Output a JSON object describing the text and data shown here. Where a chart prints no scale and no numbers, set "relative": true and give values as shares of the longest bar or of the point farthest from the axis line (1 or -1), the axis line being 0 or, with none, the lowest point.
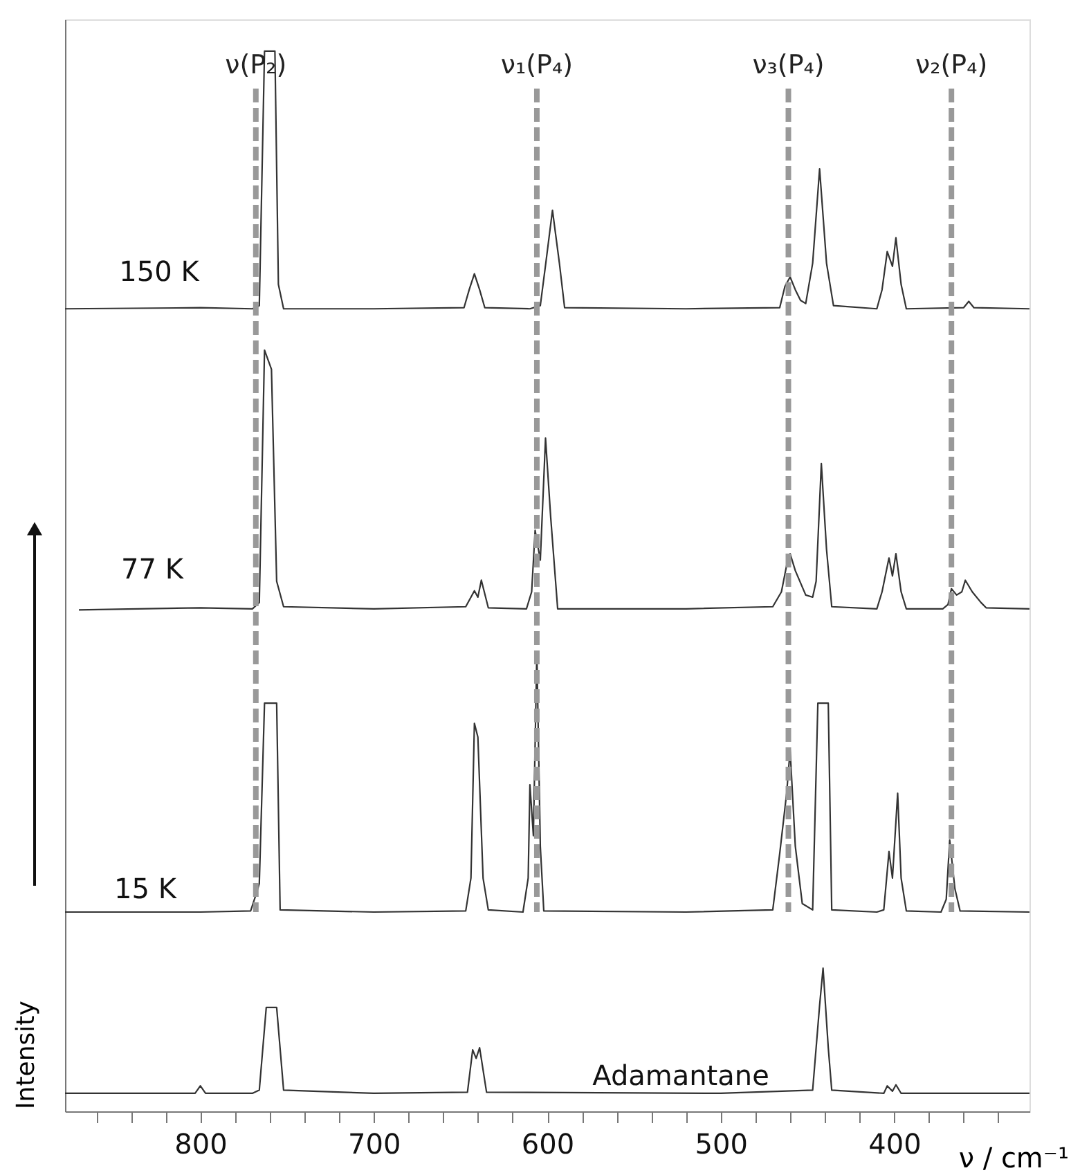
{
  "chart_data": {
    "type": "line",
    "relative": true,
    "xlabel": "ν / cm⁻¹",
    "ylabel": "Intensity",
    "xlim": [
      878,
      322
    ],
    "xticks": [
      {
        "value": 860,
        "label": null
      },
      {
        "value": 840,
        "label": null
      },
      {
        "value": 820,
        "label": null
      },
      800,
      {
        "value": 780,
        "label": null
      },
      {
        "value": 760,
        "label": null
      },
      {
        "value": 740,
        "label": null
      },
      {
        "value": 720,
        "label": null
      },
      700,
      {
        "value": 680,
        "label": null
      },
      {
        "value": 660,
        "label": null
      },
      {
        "value": 640,
        "label": null
      },
      {
        "value": 620,
        "label": null
      },
      600,
      {
        "value": 580,
        "label": null
      },
      {
        "value": 560,
        "label": null
      },
      {
        "value": 540,
        "label": null
      },
      {
        "value": 520,
        "label": null
      },
      500,
      {
        "value": 480,
        "label": null
      },
      {
        "value": 460,
        "label": null
      },
      {
        "value": 440,
        "label": null
      },
      {
        "value": 420,
        "label": null
      },
      400,
      {
        "value": 380,
        "label": null
      },
      {
        "value": 360,
        "label": null
      },
      {
        "value": 340,
        "label": null
      }
    ],
    "grid": false,
    "legend": false,
    "series": [
      {
        "name": "150 K",
        "color": "#333333",
        "x": [
          878,
          800,
          770,
          766,
          763,
          757,
          755,
          752,
          700,
          648,
          645,
          642,
          639,
          636,
          610,
          604,
          601,
          597,
          593,
          590,
          520,
          466,
          463,
          460,
          457,
          454,
          451,
          447,
          443,
          439,
          435,
          410,
          407,
          404,
          401,
          399,
          396,
          393,
          360,
          357,
          354,
          322
        ],
        "values": [
          0.757,
          0.758,
          0.757,
          0.76,
          1.0,
          1.0,
          0.78,
          0.757,
          0.757,
          0.758,
          0.775,
          0.79,
          0.775,
          0.758,
          0.757,
          0.76,
          0.798,
          0.85,
          0.8,
          0.758,
          0.757,
          0.758,
          0.778,
          0.787,
          0.775,
          0.765,
          0.762,
          0.8,
          0.889,
          0.8,
          0.76,
          0.757,
          0.775,
          0.811,
          0.797,
          0.824,
          0.78,
          0.757,
          0.758,
          0.764,
          0.758,
          0.757
        ]
      },
      {
        "name": "77 K",
        "color": "#333333",
        "x": [
          870,
          800,
          770,
          766,
          763,
          759,
          756,
          752,
          700,
          647,
          644,
          642,
          640,
          638,
          634,
          612,
          609,
          607,
          604,
          601,
          598,
          594,
          520,
          470,
          465,
          462,
          460,
          457,
          451,
          447,
          445,
          442,
          439,
          436,
          410,
          407,
          403,
          401,
          399,
          396,
          393,
          372,
          369,
          367,
          364,
          361,
          359,
          355,
          350,
          347,
          322
        ],
        "values": [
          0.473,
          0.475,
          0.474,
          0.48,
          0.718,
          0.7,
          0.5,
          0.476,
          0.474,
          0.476,
          0.485,
          0.491,
          0.485,
          0.501,
          0.475,
          0.474,
          0.49,
          0.548,
          0.52,
          0.635,
          0.56,
          0.474,
          0.474,
          0.476,
          0.49,
          0.515,
          0.526,
          0.51,
          0.487,
          0.485,
          0.5,
          0.611,
          0.53,
          0.476,
          0.474,
          0.49,
          0.522,
          0.505,
          0.526,
          0.49,
          0.474,
          0.474,
          0.478,
          0.493,
          0.487,
          0.49,
          0.501,
          0.49,
          0.48,
          0.475,
          0.474
        ]
      },
      {
        "name": "15 K",
        "color": "#333333",
        "x": [
          878,
          800,
          771,
          768,
          766,
          763,
          756,
          754,
          700,
          647,
          644,
          642,
          640,
          637,
          634,
          614,
          611,
          610,
          608,
          606,
          604,
          602,
          520,
          470,
          466,
          462,
          460,
          457,
          453,
          447,
          444,
          438,
          436,
          410,
          406,
          403,
          401,
          398,
          396,
          393,
          373,
          370,
          368,
          365,
          362,
          322
        ],
        "values": [
          0.188,
          0.188,
          0.189,
          0.204,
          0.215,
          0.385,
          0.385,
          0.19,
          0.188,
          0.189,
          0.22,
          0.366,
          0.353,
          0.22,
          0.19,
          0.188,
          0.22,
          0.308,
          0.26,
          0.433,
          0.25,
          0.189,
          0.188,
          0.19,
          0.243,
          0.3,
          0.341,
          0.25,
          0.196,
          0.19,
          0.385,
          0.385,
          0.19,
          0.188,
          0.19,
          0.245,
          0.22,
          0.3,
          0.22,
          0.189,
          0.188,
          0.2,
          0.256,
          0.21,
          0.189,
          0.188
        ]
      },
      {
        "name": "Adamantane",
        "color": "#333333",
        "x": [
          878,
          803,
          800,
          797,
          770,
          766,
          762,
          756,
          752,
          700,
          646,
          643,
          641,
          639,
          635,
          500,
          447,
          443,
          441,
          438,
          436,
          406,
          404,
          401,
          399,
          396,
          322
        ],
        "values": [
          0.017,
          0.017,
          0.024,
          0.017,
          0.017,
          0.02,
          0.098,
          0.098,
          0.02,
          0.017,
          0.018,
          0.058,
          0.05,
          0.06,
          0.018,
          0.017,
          0.02,
          0.1,
          0.135,
          0.06,
          0.02,
          0.017,
          0.024,
          0.019,
          0.025,
          0.017,
          0.017
        ]
      }
    ],
    "ref_lines": [
      {
        "axis": "x",
        "value": 768,
        "label": "ν(P₂)",
        "color": "#999999",
        "line_style": "dashed"
      },
      {
        "axis": "x",
        "value": 606,
        "label": "ν₁(P₄)",
        "color": "#999999",
        "line_style": "dashed"
      },
      {
        "axis": "x",
        "value": 461,
        "label": "ν₃(P₄)",
        "color": "#999999",
        "line_style": "dashed"
      },
      {
        "axis": "x",
        "value": 367,
        "label": "ν₂(P₄)",
        "color": "#999999",
        "line_style": "dashed"
      }
    ]
  }
}
